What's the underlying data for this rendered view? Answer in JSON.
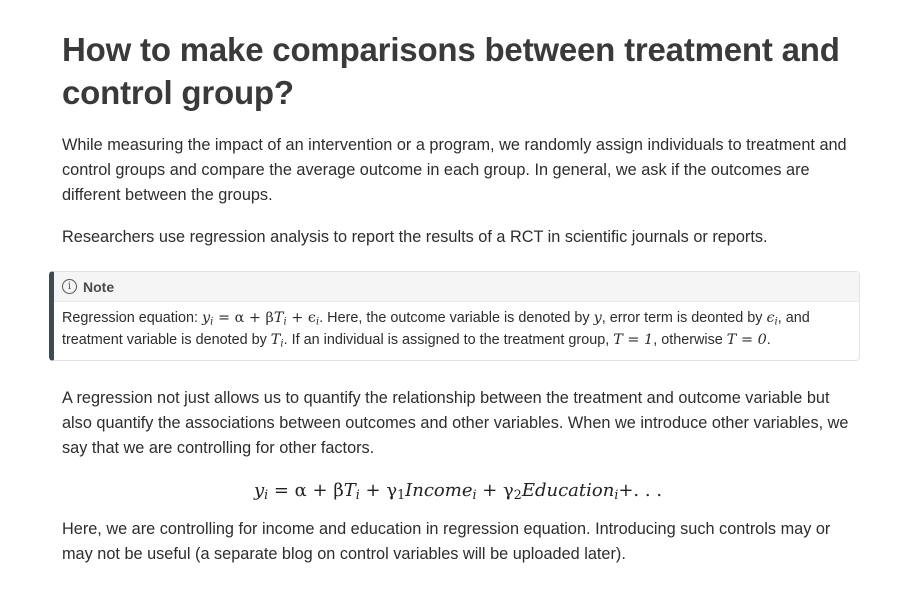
{
  "heading": "How to make comparisons between treatment and control group?",
  "paragraph1": "While measuring the impact of an intervention or a program, we randomly assign individuals to treatment and control groups and compare the average outcome in each group. In general, we ask if the outcomes are different between the groups.",
  "paragraph2": "Researchers use regression analysis to report the results of a RCT in scientific journals or reports.",
  "note": {
    "icon": "info-icon",
    "title": "Note",
    "line1_prefix": "Regression equation: ",
    "eq_y": "y",
    "eq_i": "i",
    "eq_rest1": " = α + β",
    "eq_T": "T",
    "eq_plus_eps": " + ϵ",
    "line1_mid": ". Here, the outcome variable is denoted by ",
    "var_y": "y",
    "line1_err": ", error term is deonted by ",
    "var_eps": "ϵ",
    "line1_end": ", and",
    "line2_prefix": "treatment variable is denoted by ",
    "var_T": "T",
    "line2_mid": ". If an individual is assigned to the treatment group, ",
    "cond1": "T = 1",
    "line2_otherwise": ", otherwise ",
    "cond2": "T = 0",
    "line2_end": "."
  },
  "paragraph3": "A regression not just allows us to quantify the relationship between the treatment and outcome variable but also quantify the associations between outcomes and other variables. When we introduce other variables, we say that we are controlling for other factors.",
  "equation": {
    "y": "y",
    "sub_i": "i",
    "part1": " = α + β",
    "T": "T",
    "part2": " + γ",
    "sub_1": "1",
    "income": "Income",
    "part3": " + γ",
    "sub_2": "2",
    "education": "Education",
    "tail": "+. . ."
  },
  "paragraph4": "Here, we are controlling for income and education in regression equation. Introducing such controls may or may not be useful (a separate blog on control variables will be uploaded later)."
}
